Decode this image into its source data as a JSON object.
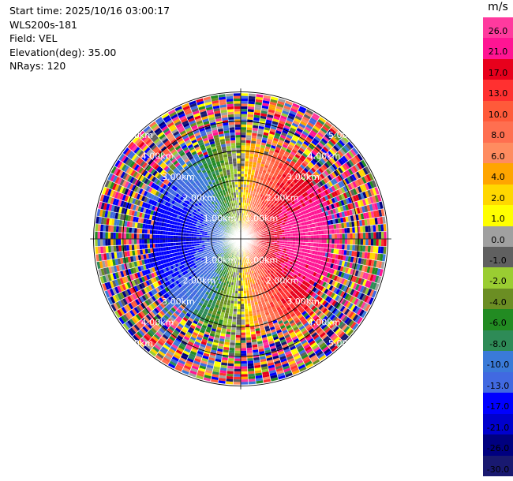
{
  "header": {
    "lines": [
      "Start time: 2025/10/16 03:00:17",
      "WLS200s-181",
      "Field: VEL",
      "Elevation(deg): 35.00",
      "NRays: 120"
    ]
  },
  "chart_data": {
    "type": "heatmap",
    "subtype": "polar-ppi",
    "field": "VEL",
    "nrays": 120,
    "range_rings_km": [
      1.0,
      2.0,
      3.0,
      4.0,
      5.0
    ],
    "range_labels": [
      "1.00km",
      "2.00km",
      "3.00km",
      "4.00km",
      "5.00km"
    ],
    "max_range_km": 5.6,
    "colorbar": {
      "unit": "m/s",
      "ticks": [
        "26.0",
        "21.0",
        "17.0",
        "13.0",
        "10.0",
        "8.0",
        "6.0",
        "4.0",
        "2.0",
        "1.0",
        "0.0",
        "-1.0",
        "-2.0",
        "-4.0",
        "-6.0",
        "-8.0",
        "-10.0",
        "-13.0",
        "-17.0",
        "-21.0",
        "-26.0",
        "-30.0"
      ],
      "colors": [
        "#ff3a9e",
        "#ff1493",
        "#e8001c",
        "#ff3030",
        "#ff5a3a",
        "#ff6f50",
        "#ff8c60",
        "#ffa500",
        "#ffd700",
        "#ffff00",
        "#a0a0a0",
        "#606060",
        "#9acd32",
        "#6b8e23",
        "#228b22",
        "#2e8b57",
        "#3a7ad8",
        "#4169e1",
        "#0000ff",
        "#0000cd",
        "#000080",
        "#191970"
      ]
    },
    "flow_direction_deg": 90,
    "peak_velocity_ms": 20
  }
}
